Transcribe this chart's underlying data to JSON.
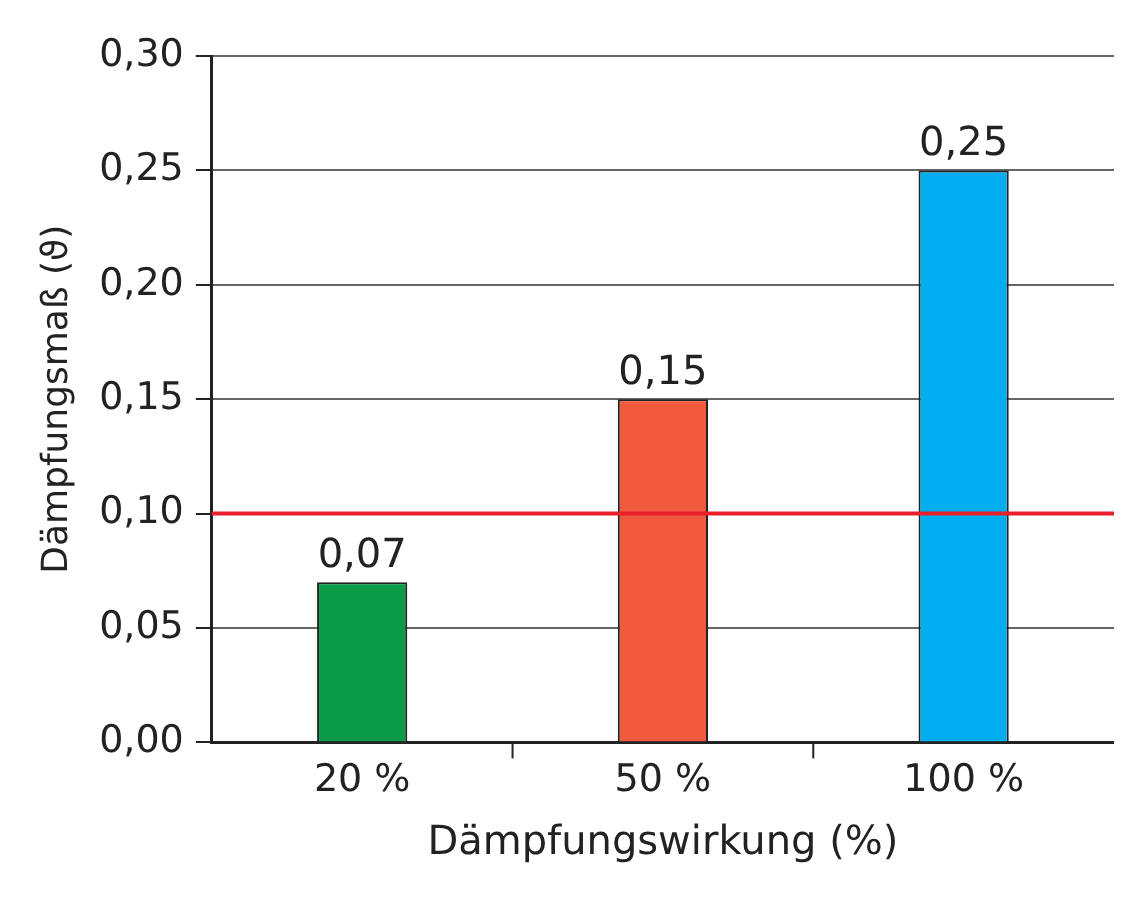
{
  "chart_data": {
    "type": "bar",
    "xlabel": "Dämpfungswirkung (%)",
    "ylabel": "Dämpfungsmaß (ϑ)",
    "categories": [
      "20 %",
      "50 %",
      "100 %"
    ],
    "values": [
      0.07,
      0.15,
      0.25
    ],
    "colors": [
      "#0a9a48",
      "#ef5a3c",
      "#00aeef"
    ],
    "value_labels": [
      "0,07",
      "0,15",
      "0,25"
    ],
    "ylim": [
      0,
      0.3
    ],
    "yticks": [
      {
        "value": 0,
        "label": "0,00"
      },
      {
        "value": 0.05,
        "label": "0,05"
      },
      {
        "value": 0.1,
        "label": "0,10"
      },
      {
        "value": 0.15,
        "label": "0,15"
      },
      {
        "value": 0.2,
        "label": "0,20"
      },
      {
        "value": 0.25,
        "label": "0,25"
      },
      {
        "value": 0.3,
        "label": "0,30"
      }
    ],
    "grid": "y",
    "legend": false,
    "ref_lines": [
      {
        "axis": "y",
        "value": 0.1,
        "color": "#e8202a"
      }
    ]
  }
}
